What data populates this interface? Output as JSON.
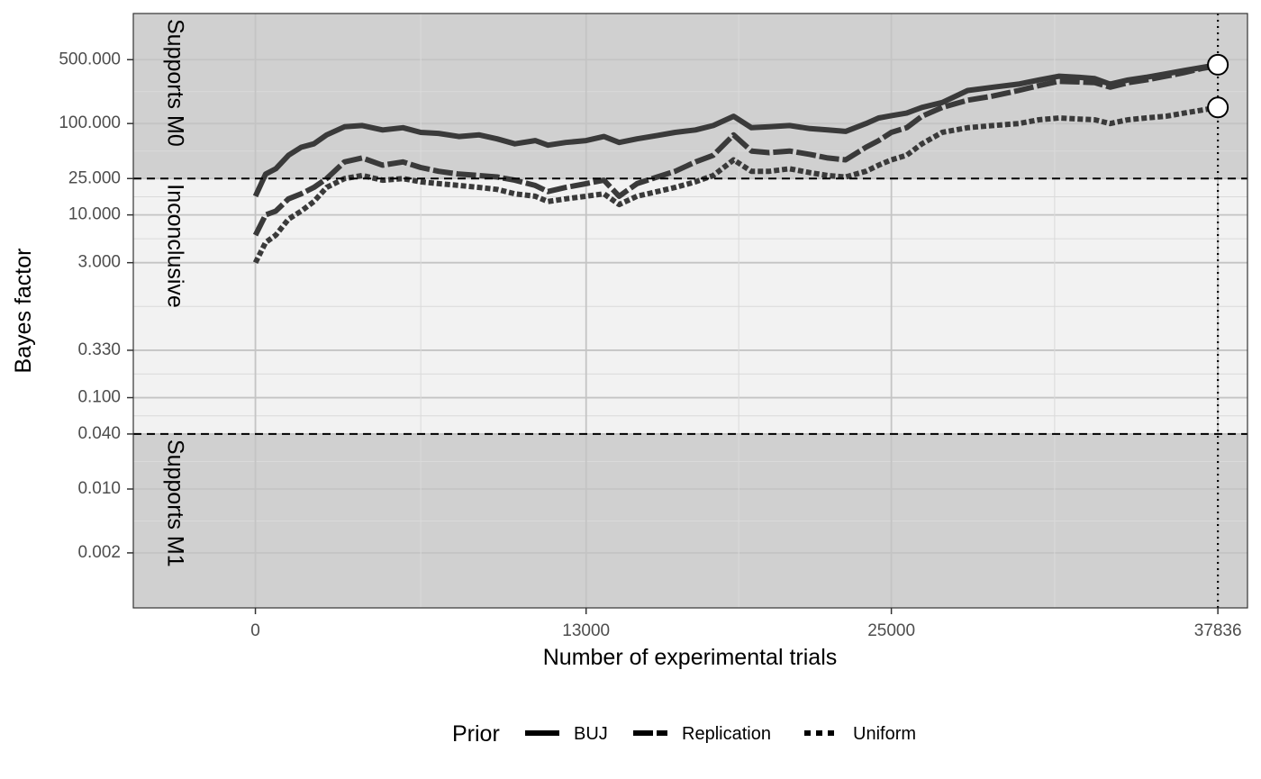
{
  "chart_data": {
    "type": "line",
    "xlabel": "Number of experimental trials",
    "ylabel": "Bayes factor",
    "x_ticks": [
      0,
      13000,
      25000,
      37836
    ],
    "x_tick_labels": [
      "0",
      "13000",
      "25000",
      "37836"
    ],
    "xlim": [
      -4800,
      39000
    ],
    "y_scale": "log",
    "ylim": [
      0.0005,
      1600
    ],
    "y_ticks": [
      500,
      100,
      25,
      10,
      3,
      0.33,
      0.1,
      0.04,
      0.01,
      0.002
    ],
    "y_tick_labels": [
      "500.000",
      "100.000",
      "25.000",
      "10.000",
      "3.000",
      "0.330",
      "0.100",
      "0.040",
      "0.010",
      "0.002"
    ],
    "grid": true,
    "thresholds": [
      25,
      0.04
    ],
    "end_marker_x": 37836,
    "regions": [
      {
        "label": "Supports M0",
        "from": 25,
        "to": 1600,
        "color": "#d0d0d0"
      },
      {
        "label": "Inconclusive",
        "from": 0.04,
        "to": 25,
        "color": "#f2f2f2"
      },
      {
        "label": "Supports M1",
        "from": 0.0005,
        "to": 0.04,
        "color": "#d0d0d0"
      }
    ],
    "legend": {
      "title": "Prior",
      "position": "bottom",
      "entries": [
        "BUJ",
        "Replication",
        "Uniform"
      ]
    },
    "x": [
      0,
      400,
      800,
      1300,
      1800,
      2300,
      2800,
      3500,
      4200,
      5000,
      5800,
      6500,
      7200,
      8000,
      8800,
      9500,
      10200,
      11000,
      11500,
      12200,
      13000,
      13700,
      14300,
      15000,
      15800,
      16500,
      17300,
      18000,
      18800,
      19500,
      20200,
      21000,
      21800,
      22500,
      23200,
      24000,
      24500,
      25000,
      25600,
      26200,
      27000,
      28000,
      29000,
      30000,
      30800,
      31600,
      32400,
      33000,
      33600,
      34300,
      35000,
      35800,
      36500,
      37200,
      37836
    ],
    "series": [
      {
        "name": "BUJ",
        "values": [
          16,
          28,
          32,
          45,
          55,
          60,
          75,
          92,
          95,
          85,
          90,
          80,
          78,
          72,
          75,
          68,
          60,
          65,
          58,
          62,
          65,
          72,
          62,
          68,
          74,
          80,
          85,
          95,
          120,
          90,
          92,
          95,
          88,
          85,
          82,
          100,
          115,
          122,
          130,
          150,
          170,
          230,
          250,
          270,
          300,
          330,
          320,
          310,
          270,
          300,
          320,
          350,
          380,
          410,
          440
        ]
      },
      {
        "name": "Replication",
        "values": [
          6,
          10,
          11,
          15,
          17,
          20,
          25,
          38,
          42,
          35,
          38,
          33,
          30,
          28,
          27,
          26,
          24,
          21,
          18,
          20,
          22,
          24,
          16,
          22,
          26,
          30,
          38,
          45,
          75,
          50,
          48,
          50,
          46,
          42,
          40,
          55,
          65,
          80,
          90,
          120,
          150,
          180,
          200,
          230,
          260,
          290,
          285,
          280,
          250,
          280,
          300,
          330,
          360,
          400,
          430
        ]
      },
      {
        "name": "Uniform",
        "values": [
          3,
          5,
          6,
          9,
          11,
          14,
          20,
          25,
          27,
          24,
          25,
          23,
          22,
          21,
          20,
          19,
          17,
          16,
          14,
          15,
          16,
          17,
          13,
          16,
          18,
          20,
          23,
          27,
          40,
          30,
          30,
          32,
          29,
          27,
          26,
          30,
          35,
          40,
          45,
          60,
          80,
          90,
          95,
          100,
          110,
          115,
          112,
          110,
          100,
          110,
          115,
          120,
          130,
          140,
          150
        ]
      }
    ]
  }
}
